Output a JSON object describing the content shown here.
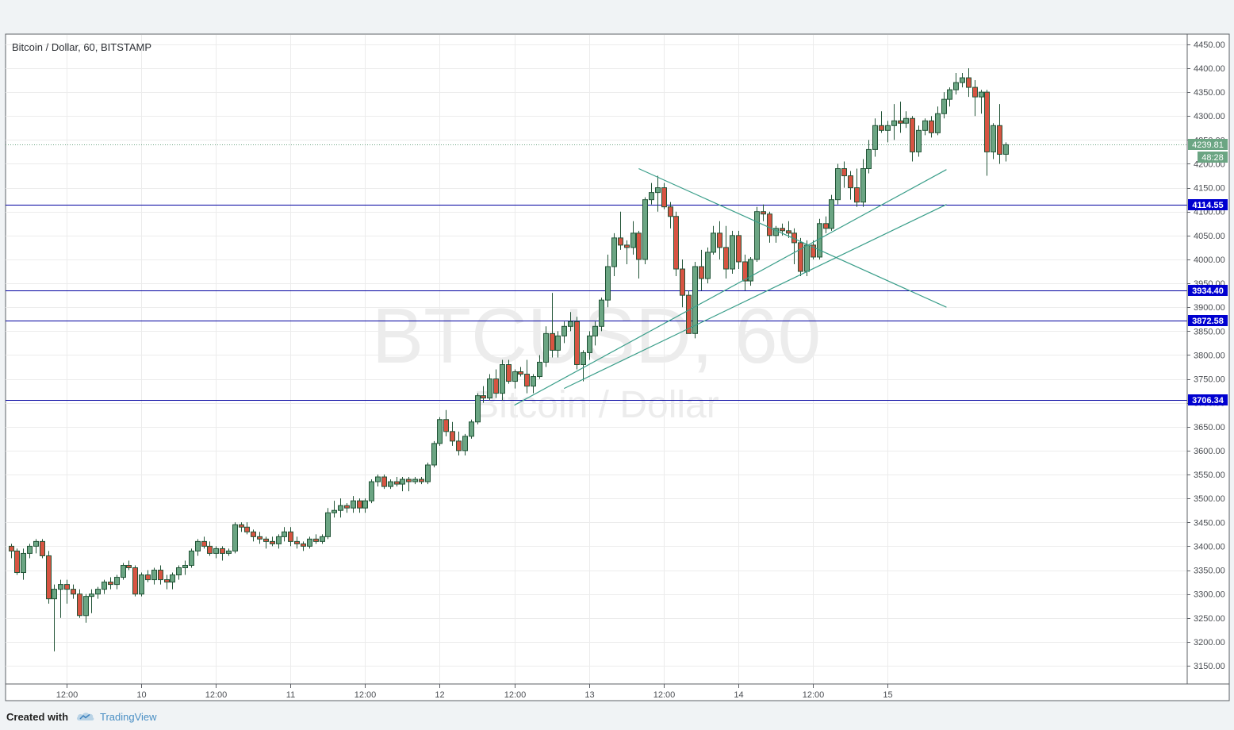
{
  "chart_data": {
    "type": "candlestick",
    "title": "Bitcoin / Dollar, 60, BITSTAMP",
    "watermark": {
      "symbol": "BTCUSD, 60",
      "name": "Bitcoin / Dollar"
    },
    "ylim": [
      3100,
      4460
    ],
    "y_ticks": [
      3150,
      3200,
      3250,
      3300,
      3350,
      3400,
      3450,
      3500,
      3550,
      3600,
      3650,
      3700,
      3750,
      3800,
      3850,
      3900,
      3950,
      4000,
      4050,
      4100,
      4150,
      4200,
      4250,
      4300,
      4350,
      4400,
      4450
    ],
    "y_axis_side": "right",
    "x_ticks": [
      {
        "label": "12:00",
        "bar": 9
      },
      {
        "label": "10",
        "bar": 21
      },
      {
        "label": "12:00",
        "bar": 33
      },
      {
        "label": "11",
        "bar": 45
      },
      {
        "label": "12:00",
        "bar": 57
      },
      {
        "label": "12",
        "bar": 69
      },
      {
        "label": "12:00",
        "bar": 81
      },
      {
        "label": "13",
        "bar": 93
      },
      {
        "label": "12:00",
        "bar": 105
      },
      {
        "label": "14",
        "bar": 117
      },
      {
        "label": "12:00",
        "bar": 129
      },
      {
        "label": "15",
        "bar": 141
      }
    ],
    "grid": true,
    "last_price": {
      "value": 4239.81,
      "label": "4239.81",
      "countdown": "48:28",
      "color": "#6ba583"
    },
    "horizontal_lines": [
      {
        "value": 4114.55,
        "label": "4114.55"
      },
      {
        "value": 3934.4,
        "label": "3934.40"
      },
      {
        "value": 3872.58,
        "label": "3872.58"
      },
      {
        "value": 3706.34,
        "label": "3706.34"
      }
    ],
    "trend_lines": [
      {
        "from": {
          "bar": 81,
          "price": 3695
        },
        "to": {
          "bar": 150.5,
          "price": 4188
        }
      },
      {
        "from": {
          "bar": 89,
          "price": 3730
        },
        "to": {
          "bar": 150.5,
          "price": 4115
        }
      },
      {
        "from": {
          "bar": 101,
          "price": 4190
        },
        "to": {
          "bar": 150.5,
          "price": 3900
        }
      }
    ],
    "candles": [
      [
        3400,
        3405,
        3375,
        3390
      ],
      [
        3390,
        3395,
        3340,
        3345
      ],
      [
        3345,
        3395,
        3330,
        3385
      ],
      [
        3385,
        3405,
        3375,
        3400
      ],
      [
        3400,
        3415,
        3385,
        3410
      ],
      [
        3410,
        3415,
        3375,
        3380
      ],
      [
        3380,
        3390,
        3280,
        3290
      ],
      [
        3290,
        3320,
        3180,
        3310
      ],
      [
        3310,
        3330,
        3250,
        3320
      ],
      [
        3320,
        3330,
        3280,
        3310
      ],
      [
        3310,
        3320,
        3290,
        3300
      ],
      [
        3300,
        3310,
        3250,
        3255
      ],
      [
        3255,
        3300,
        3240,
        3295
      ],
      [
        3295,
        3310,
        3260,
        3300
      ],
      [
        3300,
        3315,
        3290,
        3310
      ],
      [
        3310,
        3330,
        3300,
        3325
      ],
      [
        3325,
        3335,
        3310,
        3320
      ],
      [
        3320,
        3340,
        3310,
        3335
      ],
      [
        3335,
        3365,
        3330,
        3360
      ],
      [
        3360,
        3370,
        3350,
        3355
      ],
      [
        3355,
        3360,
        3295,
        3300
      ],
      [
        3300,
        3345,
        3295,
        3340
      ],
      [
        3340,
        3350,
        3325,
        3330
      ],
      [
        3330,
        3355,
        3320,
        3350
      ],
      [
        3350,
        3360,
        3320,
        3330
      ],
      [
        3330,
        3340,
        3310,
        3325
      ],
      [
        3325,
        3345,
        3310,
        3340
      ],
      [
        3340,
        3360,
        3330,
        3355
      ],
      [
        3355,
        3370,
        3340,
        3360
      ],
      [
        3360,
        3395,
        3355,
        3390
      ],
      [
        3390,
        3415,
        3380,
        3410
      ],
      [
        3410,
        3420,
        3395,
        3400
      ],
      [
        3400,
        3410,
        3380,
        3385
      ],
      [
        3385,
        3400,
        3375,
        3395
      ],
      [
        3395,
        3400,
        3370,
        3385
      ],
      [
        3385,
        3395,
        3380,
        3390
      ],
      [
        3390,
        3450,
        3385,
        3445
      ],
      [
        3445,
        3450,
        3430,
        3440
      ],
      [
        3440,
        3450,
        3425,
        3430
      ],
      [
        3430,
        3435,
        3410,
        3420
      ],
      [
        3420,
        3430,
        3405,
        3415
      ],
      [
        3415,
        3420,
        3395,
        3410
      ],
      [
        3410,
        3420,
        3400,
        3405
      ],
      [
        3405,
        3425,
        3395,
        3420
      ],
      [
        3420,
        3440,
        3410,
        3430
      ],
      [
        3430,
        3440,
        3400,
        3410
      ],
      [
        3410,
        3420,
        3395,
        3405
      ],
      [
        3405,
        3410,
        3390,
        3400
      ],
      [
        3400,
        3420,
        3395,
        3415
      ],
      [
        3415,
        3425,
        3405,
        3410
      ],
      [
        3410,
        3425,
        3405,
        3420
      ],
      [
        3420,
        3480,
        3415,
        3470
      ],
      [
        3470,
        3495,
        3460,
        3475
      ],
      [
        3475,
        3500,
        3460,
        3485
      ],
      [
        3485,
        3490,
        3470,
        3480
      ],
      [
        3480,
        3505,
        3470,
        3495
      ],
      [
        3495,
        3500,
        3470,
        3480
      ],
      [
        3480,
        3500,
        3470,
        3495
      ],
      [
        3495,
        3540,
        3490,
        3535
      ],
      [
        3535,
        3550,
        3525,
        3545
      ],
      [
        3545,
        3550,
        3520,
        3525
      ],
      [
        3525,
        3540,
        3520,
        3535
      ],
      [
        3535,
        3545,
        3525,
        3530
      ],
      [
        3530,
        3545,
        3515,
        3540
      ],
      [
        3540,
        3545,
        3515,
        3535
      ],
      [
        3535,
        3545,
        3530,
        3540
      ],
      [
        3540,
        3545,
        3530,
        3535
      ],
      [
        3535,
        3575,
        3530,
        3570
      ],
      [
        3570,
        3620,
        3565,
        3615
      ],
      [
        3615,
        3670,
        3610,
        3665
      ],
      [
        3665,
        3685,
        3630,
        3640
      ],
      [
        3640,
        3660,
        3610,
        3620
      ],
      [
        3620,
        3640,
        3590,
        3600
      ],
      [
        3600,
        3635,
        3590,
        3630
      ],
      [
        3630,
        3665,
        3625,
        3660
      ],
      [
        3660,
        3720,
        3655,
        3715
      ],
      [
        3715,
        3735,
        3700,
        3710
      ],
      [
        3710,
        3760,
        3705,
        3750
      ],
      [
        3750,
        3770,
        3710,
        3720
      ],
      [
        3720,
        3790,
        3705,
        3780
      ],
      [
        3780,
        3790,
        3740,
        3745
      ],
      [
        3745,
        3770,
        3730,
        3765
      ],
      [
        3765,
        3775,
        3755,
        3760
      ],
      [
        3760,
        3790,
        3720,
        3735
      ],
      [
        3735,
        3760,
        3720,
        3755
      ],
      [
        3755,
        3800,
        3750,
        3785
      ],
      [
        3785,
        3860,
        3775,
        3845
      ],
      [
        3845,
        3930,
        3795,
        3810
      ],
      [
        3810,
        3850,
        3795,
        3840
      ],
      [
        3840,
        3870,
        3825,
        3860
      ],
      [
        3860,
        3890,
        3850,
        3870
      ],
      [
        3870,
        3880,
        3770,
        3780
      ],
      [
        3780,
        3810,
        3745,
        3805
      ],
      [
        3805,
        3850,
        3790,
        3840
      ],
      [
        3840,
        3870,
        3820,
        3860
      ],
      [
        3860,
        3920,
        3850,
        3915
      ],
      [
        3915,
        4010,
        3900,
        3985
      ],
      [
        3985,
        4055,
        3965,
        4045
      ],
      [
        4045,
        4100,
        4020,
        4030
      ],
      [
        4030,
        4040,
        3990,
        4025
      ],
      [
        4025,
        4080,
        4010,
        4055
      ],
      [
        4055,
        4060,
        3960,
        4000
      ],
      [
        4000,
        4130,
        3990,
        4125
      ],
      [
        4125,
        4160,
        4115,
        4140
      ],
      [
        4140,
        4175,
        4100,
        4150
      ],
      [
        4150,
        4160,
        4105,
        4110
      ],
      [
        4110,
        4120,
        4065,
        4090
      ],
      [
        4090,
        4100,
        3965,
        3980
      ],
      [
        3980,
        4000,
        3900,
        3925
      ],
      [
        3925,
        3935,
        3845,
        3845
      ],
      [
        3845,
        3995,
        3835,
        3985
      ],
      [
        3985,
        4020,
        3935,
        3960
      ],
      [
        3960,
        4025,
        3950,
        4015
      ],
      [
        4015,
        4070,
        4010,
        4055
      ],
      [
        4055,
        4080,
        4000,
        4025
      ],
      [
        4025,
        4070,
        3960,
        3980
      ],
      [
        3980,
        4060,
        3970,
        4050
      ],
      [
        4050,
        4060,
        3980,
        3995
      ],
      [
        3995,
        4010,
        3935,
        3955
      ],
      [
        3955,
        4005,
        3945,
        4000
      ],
      [
        4000,
        4110,
        3995,
        4100
      ],
      [
        4100,
        4115,
        4080,
        4095
      ],
      [
        4095,
        4100,
        4035,
        4050
      ],
      [
        4050,
        4070,
        4035,
        4065
      ],
      [
        4065,
        4075,
        4050,
        4060
      ],
      [
        4060,
        4080,
        4045,
        4055
      ],
      [
        4055,
        4065,
        3990,
        4035
      ],
      [
        4035,
        4045,
        3965,
        3975
      ],
      [
        3975,
        4040,
        3965,
        4030
      ],
      [
        4030,
        4040,
        4000,
        4005
      ],
      [
        4005,
        4085,
        4000,
        4075
      ],
      [
        4075,
        4090,
        4055,
        4065
      ],
      [
        4065,
        4135,
        4060,
        4125
      ],
      [
        4125,
        4200,
        4115,
        4190
      ],
      [
        4190,
        4205,
        4150,
        4175
      ],
      [
        4175,
        4185,
        4125,
        4150
      ],
      [
        4150,
        4190,
        4110,
        4120
      ],
      [
        4120,
        4210,
        4110,
        4190
      ],
      [
        4190,
        4250,
        4180,
        4230
      ],
      [
        4230,
        4295,
        4215,
        4280
      ],
      [
        4280,
        4310,
        4265,
        4270
      ],
      [
        4270,
        4290,
        4245,
        4280
      ],
      [
        4280,
        4325,
        4250,
        4290
      ],
      [
        4290,
        4330,
        4265,
        4285
      ],
      [
        4285,
        4310,
        4275,
        4295
      ],
      [
        4295,
        4300,
        4205,
        4225
      ],
      [
        4225,
        4280,
        4215,
        4270
      ],
      [
        4270,
        4295,
        4260,
        4290
      ],
      [
        4290,
        4300,
        4255,
        4265
      ],
      [
        4265,
        4320,
        4260,
        4305
      ],
      [
        4305,
        4350,
        4295,
        4335
      ],
      [
        4335,
        4360,
        4320,
        4355
      ],
      [
        4355,
        4390,
        4345,
        4370
      ],
      [
        4370,
        4390,
        4360,
        4380
      ],
      [
        4380,
        4400,
        4340,
        4360
      ],
      [
        4360,
        4375,
        4300,
        4340
      ],
      [
        4340,
        4355,
        4305,
        4350
      ],
      [
        4350,
        4355,
        4175,
        4225
      ],
      [
        4225,
        4285,
        4210,
        4280
      ],
      [
        4280,
        4325,
        4200,
        4220
      ],
      [
        4220,
        4245,
        4205,
        4240
      ]
    ]
  },
  "footer": {
    "created": "Created with",
    "brand": "TradingView"
  }
}
